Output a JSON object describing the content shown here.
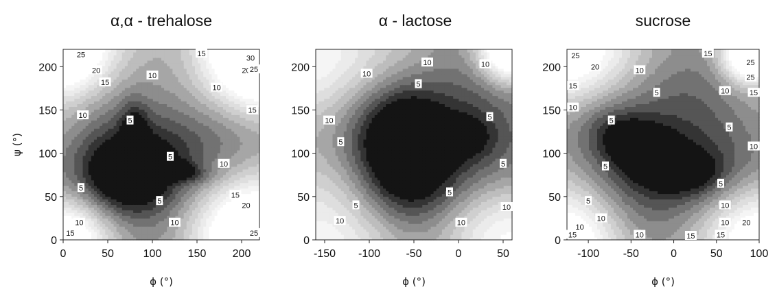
{
  "chart_data": [
    {
      "type": "contour",
      "title": "α,α - trehalose",
      "xlabel": "ϕ (°)",
      "ylabel": "ψ (°)",
      "xlim": [
        0,
        220
      ],
      "ylim": [
        0,
        220
      ],
      "xticks": [
        0,
        50,
        100,
        150,
        200
      ],
      "yticks": [
        0,
        50,
        100,
        150,
        200
      ],
      "contour_levels": [
        2.5,
        5,
        7.5,
        10,
        12.5,
        15,
        17.5,
        20,
        22.5,
        25,
        27.5,
        30
      ],
      "colormap": [
        "#141414",
        "#343434",
        "#555555",
        "#727272",
        "#8d8d8d",
        "#a6a6a6",
        "#bdbdbd",
        "#cfcfcf",
        "#dedede",
        "#ebebeb",
        "#f5f5f5",
        "#ffffff"
      ],
      "minima": [
        {
          "x": 65,
          "y": 70,
          "depth": 2.5,
          "sx": 36,
          "sy": 30,
          "angle": 0
        },
        {
          "x": 80,
          "y": 125,
          "depth": 2,
          "sx": 10,
          "sy": 24,
          "angle": 0
        },
        {
          "x": 130,
          "y": 80,
          "depth": 2,
          "sx": 22,
          "sy": 8,
          "angle": -10
        },
        {
          "x": 100,
          "y": 95,
          "depth": 3,
          "sx": 70,
          "sy": 55,
          "angle": 0
        }
      ],
      "corners": [
        {
          "x": 220,
          "y": 220,
          "height": 35,
          "s": 45
        },
        {
          "x": 220,
          "y": 0,
          "height": 30,
          "s": 50
        },
        {
          "x": 0,
          "y": 220,
          "height": 28,
          "s": 40
        },
        {
          "x": 0,
          "y": 0,
          "height": 22,
          "s": 35
        }
      ],
      "base_energy": 14,
      "contour_labels": [
        {
          "x": 20,
          "y": 214,
          "text": "25"
        },
        {
          "x": 155,
          "y": 218,
          "text": "15"
        },
        {
          "x": 210,
          "y": 210,
          "text": "30"
        },
        {
          "x": 37,
          "y": 196,
          "text": "20"
        },
        {
          "x": 205,
          "y": 196,
          "text": "20"
        },
        {
          "x": 216,
          "y": 197,
          "text": "25"
        },
        {
          "x": 100,
          "y": 190,
          "text": "10"
        },
        {
          "x": 47,
          "y": 182,
          "text": "15"
        },
        {
          "x": 172,
          "y": 176,
          "text": "10"
        },
        {
          "x": 212,
          "y": 150,
          "text": "15"
        },
        {
          "x": 75,
          "y": 138,
          "text": "5"
        },
        {
          "x": 22,
          "y": 144,
          "text": "10"
        },
        {
          "x": 120,
          "y": 96,
          "text": "5"
        },
        {
          "x": 180,
          "y": 88,
          "text": "10"
        },
        {
          "x": 20,
          "y": 60,
          "text": "5"
        },
        {
          "x": 108,
          "y": 45,
          "text": "5"
        },
        {
          "x": 193,
          "y": 52,
          "text": "15"
        },
        {
          "x": 205,
          "y": 40,
          "text": "20"
        },
        {
          "x": 125,
          "y": 20,
          "text": "10"
        },
        {
          "x": 18,
          "y": 20,
          "text": "10"
        },
        {
          "x": 8,
          "y": 8,
          "text": "15"
        },
        {
          "x": 215,
          "y": 8,
          "text": "25"
        }
      ]
    },
    {
      "type": "contour",
      "title": "α - lactose",
      "xlabel": "ϕ (°)",
      "ylabel": "",
      "xlim": [
        -160,
        60
      ],
      "ylim": [
        0,
        220
      ],
      "xticks": [
        -150,
        -100,
        -50,
        0,
        50
      ],
      "yticks": [
        0,
        50,
        100,
        150,
        200
      ],
      "contour_levels": [
        2.5,
        5,
        7.5,
        10,
        12.5,
        15,
        17.5,
        20,
        22.5,
        25,
        27.5,
        30
      ],
      "colormap": [
        "#141414",
        "#343434",
        "#555555",
        "#727272",
        "#8d8d8d",
        "#a6a6a6",
        "#bdbdbd",
        "#cfcfcf",
        "#dedede",
        "#ebebeb",
        "#f5f5f5",
        "#ffffff"
      ],
      "minima": [
        {
          "x": -60,
          "y": 110,
          "depth": 3,
          "sx": 32,
          "sy": 45,
          "angle": 0
        },
        {
          "x": -40,
          "y": 100,
          "depth": 3.2,
          "sx": 75,
          "sy": 55,
          "angle": 0
        },
        {
          "x": 10,
          "y": 120,
          "depth": 1.5,
          "sx": 22,
          "sy": 18,
          "angle": 0
        }
      ],
      "corners": [
        {
          "x": 60,
          "y": 220,
          "height": 30,
          "s": 25
        },
        {
          "x": -160,
          "y": 220,
          "height": 16,
          "s": 60
        },
        {
          "x": -160,
          "y": 0,
          "height": 16,
          "s": 60
        },
        {
          "x": 60,
          "y": 0,
          "height": 16,
          "s": 55
        }
      ],
      "base_energy": 12,
      "contour_labels": [
        {
          "x": -103,
          "y": 192,
          "text": "10"
        },
        {
          "x": -35,
          "y": 205,
          "text": "10"
        },
        {
          "x": 30,
          "y": 203,
          "text": "10"
        },
        {
          "x": -45,
          "y": 180,
          "text": "5"
        },
        {
          "x": 35,
          "y": 142,
          "text": "5"
        },
        {
          "x": -145,
          "y": 138,
          "text": "10"
        },
        {
          "x": -132,
          "y": 113,
          "text": "5"
        },
        {
          "x": 50,
          "y": 88,
          "text": "5"
        },
        {
          "x": -10,
          "y": 55,
          "text": "5"
        },
        {
          "x": -115,
          "y": 40,
          "text": "5"
        },
        {
          "x": 60,
          "y": 38,
          "text": "10"
        },
        {
          "x": -133,
          "y": 22,
          "text": "10"
        },
        {
          "x": 3,
          "y": 20,
          "text": "10"
        }
      ]
    },
    {
      "type": "contour",
      "title": "sucrose",
      "xlabel": "ϕ (°)",
      "ylabel": "",
      "xlim": [
        -125,
        100
      ],
      "ylim": [
        0,
        220
      ],
      "xticks": [
        -100,
        -50,
        0,
        50,
        100
      ],
      "yticks": [
        0,
        50,
        100,
        150,
        200
      ],
      "contour_levels": [
        2.5,
        5,
        7.5,
        10,
        12.5,
        15,
        17.5,
        20,
        22.5,
        25,
        27.5,
        30
      ],
      "colormap": [
        "#141414",
        "#343434",
        "#555555",
        "#727272",
        "#8d8d8d",
        "#a6a6a6",
        "#bdbdbd",
        "#cfcfcf",
        "#dedede",
        "#ebebeb",
        "#f5f5f5",
        "#ffffff"
      ],
      "minima": [
        {
          "x": -30,
          "y": 100,
          "depth": 3.2,
          "sx": 40,
          "sy": 20,
          "angle": -30
        },
        {
          "x": -15,
          "y": 100,
          "depth": 3,
          "sx": 75,
          "sy": 55,
          "angle": -20
        },
        {
          "x": 30,
          "y": 80,
          "depth": 1.2,
          "sx": 20,
          "sy": 14,
          "angle": 0
        }
      ],
      "corners": [
        {
          "x": 90,
          "y": 215,
          "height": 30,
          "s": 22
        },
        {
          "x": -125,
          "y": 220,
          "height": 22,
          "s": 50
        },
        {
          "x": -125,
          "y": 0,
          "height": 20,
          "s": 45
        },
        {
          "x": 100,
          "y": 0,
          "height": 22,
          "s": 45
        }
      ],
      "base_energy": 13,
      "contour_labels": [
        {
          "x": -115,
          "y": 213,
          "text": "25"
        },
        {
          "x": -92,
          "y": 200,
          "text": "20"
        },
        {
          "x": 40,
          "y": 218,
          "text": "15"
        },
        {
          "x": 90,
          "y": 205,
          "text": "25"
        },
        {
          "x": 90,
          "y": 188,
          "text": "25"
        },
        {
          "x": -40,
          "y": 196,
          "text": "10"
        },
        {
          "x": -118,
          "y": 178,
          "text": "15"
        },
        {
          "x": -20,
          "y": 170,
          "text": "5"
        },
        {
          "x": 60,
          "y": 172,
          "text": "10"
        },
        {
          "x": 97,
          "y": 170,
          "text": "15"
        },
        {
          "x": -118,
          "y": 153,
          "text": "10"
        },
        {
          "x": -73,
          "y": 138,
          "text": "5"
        },
        {
          "x": 65,
          "y": 130,
          "text": "5"
        },
        {
          "x": 95,
          "y": 108,
          "text": "10"
        },
        {
          "x": -80,
          "y": 85,
          "text": "5"
        },
        {
          "x": 55,
          "y": 65,
          "text": "5"
        },
        {
          "x": -100,
          "y": 45,
          "text": "5"
        },
        {
          "x": 60,
          "y": 40,
          "text": "10"
        },
        {
          "x": -85,
          "y": 25,
          "text": "10"
        },
        {
          "x": 60,
          "y": 20,
          "text": "10"
        },
        {
          "x": -110,
          "y": 15,
          "text": "10"
        },
        {
          "x": -120,
          "y": 6,
          "text": "15"
        },
        {
          "x": -40,
          "y": 6,
          "text": "10"
        },
        {
          "x": 20,
          "y": 4,
          "text": "15"
        },
        {
          "x": 55,
          "y": 6,
          "text": "15"
        },
        {
          "x": 85,
          "y": 20,
          "text": "20"
        }
      ]
    }
  ]
}
